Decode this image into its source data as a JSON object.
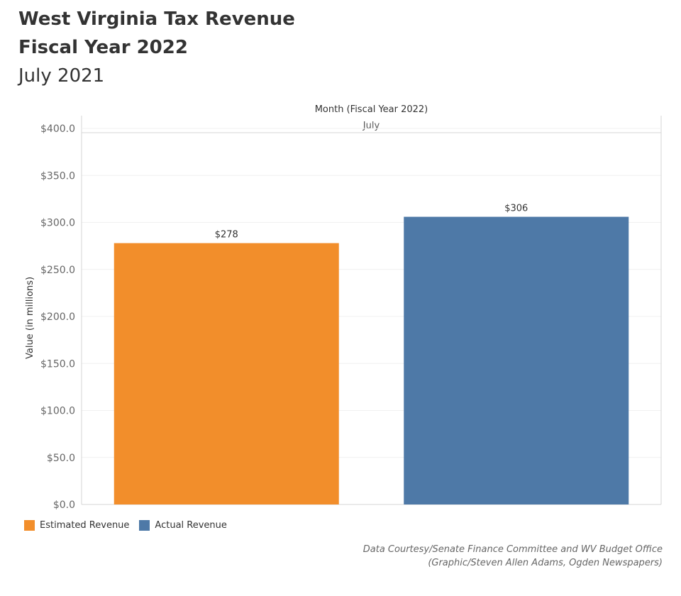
{
  "header": {
    "title_line1": "West Virginia Tax Revenue",
    "title_line2": "Fiscal Year 2022",
    "subtitle": "July 2021"
  },
  "chart_data": {
    "type": "bar",
    "column_header": "Month (Fiscal Year 2022)",
    "categories": [
      "July"
    ],
    "series": [
      {
        "name": "Estimated Revenue",
        "values": [
          278
        ],
        "label": "$278",
        "color": "#F28E2B"
      },
      {
        "name": "Actual Revenue",
        "values": [
          306
        ],
        "label": "$306",
        "color": "#4E79A7"
      }
    ],
    "ylabel": "Value (in millions)",
    "ylim": [
      0,
      400
    ],
    "yticks": [
      {
        "value": 0,
        "label": "$0.0"
      },
      {
        "value": 50,
        "label": "$50.0"
      },
      {
        "value": 100,
        "label": "$100.0"
      },
      {
        "value": 150,
        "label": "$150.0"
      },
      {
        "value": 200,
        "label": "$200.0"
      },
      {
        "value": 250,
        "label": "$250.0"
      },
      {
        "value": 300,
        "label": "$300.0"
      },
      {
        "value": 350,
        "label": "$350.0"
      },
      {
        "value": 400,
        "label": "$400.0"
      }
    ],
    "grid": true,
    "legend": "bottom-left"
  },
  "legend": {
    "items": [
      {
        "label": "Estimated Revenue",
        "color": "#F28E2B"
      },
      {
        "label": "Actual Revenue",
        "color": "#4E79A7"
      }
    ]
  },
  "credits": {
    "line1": "Data Courtesy/Senate Finance Committee and WV Budget Office",
    "line2": "(Graphic/Steven Allen Adams, Ogden Newspapers)"
  }
}
